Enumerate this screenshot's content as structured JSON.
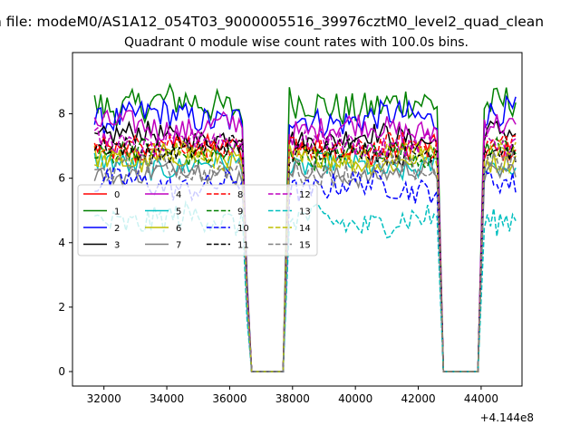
{
  "suptitle": "n file: modeM0/AS1A12_054T03_9000005516_39976cztM0_level2_quad_clean",
  "chart_data": {
    "type": "line",
    "title": "Quadrant 0 module wise count rates with 100.0s bins.",
    "xlabel": "",
    "ylabel": "",
    "x_offset_label": "+4.144e8",
    "xlim": [
      31000,
      45300
    ],
    "ylim": [
      -0.45,
      9.9
    ],
    "x_ticks": [
      32000,
      34000,
      36000,
      38000,
      40000,
      42000,
      44000
    ],
    "x_tick_labels": [
      "32000",
      "34000",
      "36000",
      "38000",
      "40000",
      "42000",
      "44000"
    ],
    "y_ticks": [
      0,
      2,
      4,
      6,
      8
    ],
    "y_tick_labels": [
      "0",
      "2",
      "4",
      "6",
      "8"
    ],
    "grid": false,
    "legend": {
      "placement": "center-left",
      "columns": 4
    },
    "segments": [
      {
        "start": 31700,
        "end": 36400
      },
      {
        "start": 37900,
        "end": 42600
      },
      {
        "start": 44100,
        "end": 45100
      }
    ],
    "gaps": [
      {
        "start": 36400,
        "end": 37900,
        "zero_start": 36700,
        "zero_end": 37700
      },
      {
        "start": 42600,
        "end": 44100,
        "zero_start": 42800,
        "zero_end": 43900
      }
    ],
    "series": [
      {
        "name": "0",
        "color": "#ff0000",
        "dash": "solid",
        "mean": 6.9,
        "amp": 0.35
      },
      {
        "name": "1",
        "color": "#008000",
        "dash": "solid",
        "mean": 8.3,
        "amp": 0.55
      },
      {
        "name": "2",
        "color": "#0000ff",
        "dash": "solid",
        "mean": 7.9,
        "amp": 0.45
      },
      {
        "name": "3",
        "color": "#000000",
        "dash": "solid",
        "mean": 7.3,
        "amp": 0.35
      },
      {
        "name": "4",
        "color": "#bf00bf",
        "dash": "solid",
        "mean": 7.6,
        "amp": 0.4
      },
      {
        "name": "5",
        "color": "#00bfbf",
        "dash": "solid",
        "mean": 6.4,
        "amp": 0.35
      },
      {
        "name": "6",
        "color": "#bfbf00",
        "dash": "solid",
        "mean": 6.6,
        "amp": 0.35
      },
      {
        "name": "7",
        "color": "#808080",
        "dash": "solid",
        "mean": 6.2,
        "amp": 0.3
      },
      {
        "name": "8",
        "color": "#ff0000",
        "dash": "dashed",
        "mean": 7.0,
        "amp": 0.35
      },
      {
        "name": "9",
        "color": "#008000",
        "dash": "dashed",
        "mean": 6.8,
        "amp": 0.35
      },
      {
        "name": "10",
        "color": "#0000ff",
        "dash": "dashed",
        "mean": 5.8,
        "amp": 0.4
      },
      {
        "name": "11",
        "color": "#000000",
        "dash": "dashed",
        "mean": 6.9,
        "amp": 0.35
      },
      {
        "name": "12",
        "color": "#bf00bf",
        "dash": "dashed",
        "mean": 7.1,
        "amp": 0.35
      },
      {
        "name": "13",
        "color": "#00bfbf",
        "dash": "dashed",
        "mean": 4.7,
        "amp": 0.45
      },
      {
        "name": "14",
        "color": "#bfbf00",
        "dash": "dashed",
        "mean": 6.7,
        "amp": 0.35
      },
      {
        "name": "15",
        "color": "#808080",
        "dash": "dashed",
        "mean": 6.3,
        "amp": 0.35
      }
    ]
  }
}
